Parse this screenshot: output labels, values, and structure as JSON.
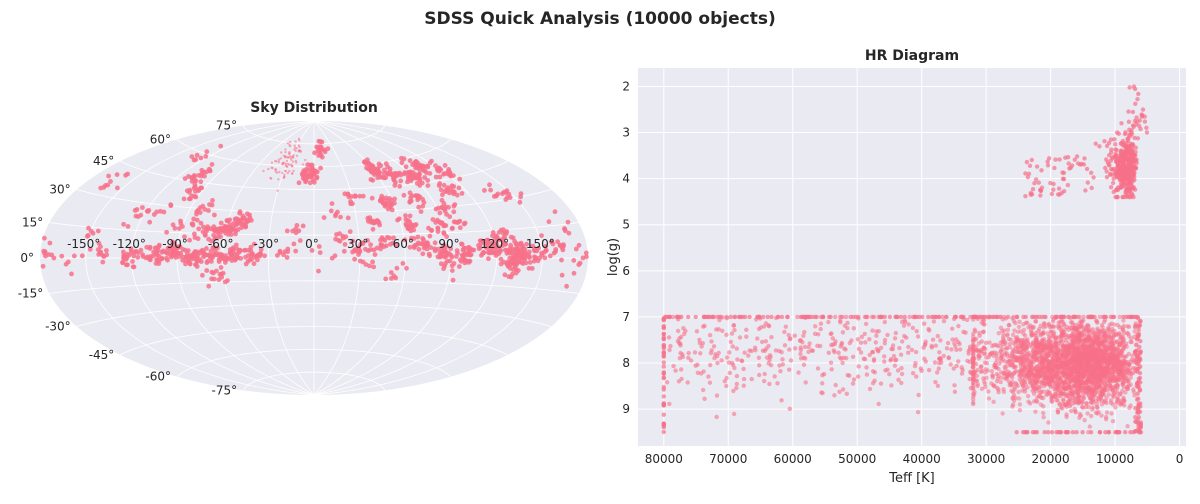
{
  "figure": {
    "suptitle": "SDSS Quick Analysis (10000 objects)"
  },
  "colors": {
    "points": "#f77189",
    "panel_bg": "#eaeaf2",
    "grid": "#ffffff",
    "text": "#262626"
  },
  "chart_data": [
    {
      "type": "scatter",
      "projection": "aitoff",
      "title": "Sky Distribution",
      "grid": true,
      "lon_tick_labels": [
        "-150°",
        "-120°",
        "-90°",
        "-60°",
        "-30°",
        "0°",
        "30°",
        "60°",
        "90°",
        "120°",
        "150°"
      ],
      "lat_tick_labels": [
        "-75°",
        "-60°",
        "-45°",
        "-30°",
        "-15°",
        "0°",
        "15°",
        "30°",
        "45°",
        "60°",
        "75°"
      ],
      "lon_ticks": [
        -150,
        -120,
        -90,
        -60,
        -30,
        0,
        30,
        60,
        90,
        120,
        150
      ],
      "lat_ticks": [
        -75,
        -60,
        -45,
        -30,
        -15,
        0,
        15,
        30,
        45,
        60,
        75
      ],
      "clusters": [
        {
          "lon": -165,
          "lat": 37,
          "n": 10
        },
        {
          "lon": -150,
          "lat": 12,
          "n": 6
        },
        {
          "lon": -140,
          "lat": 3,
          "n": 12
        },
        {
          "lon": -120,
          "lat": 0,
          "n": 25
        },
        {
          "lon": -105,
          "lat": 2,
          "n": 30
        },
        {
          "lon": -92,
          "lat": 4,
          "n": 40
        },
        {
          "lon": -80,
          "lat": 0,
          "n": 35
        },
        {
          "lon": -68,
          "lat": 2,
          "n": 30
        },
        {
          "lon": -55,
          "lat": 1,
          "n": 40
        },
        {
          "lon": -42,
          "lat": 2,
          "n": 30
        },
        {
          "lon": -60,
          "lat": 18,
          "n": 45
        },
        {
          "lon": -50,
          "lat": 24,
          "n": 30
        },
        {
          "lon": -72,
          "lat": 16,
          "n": 20
        },
        {
          "lon": -65,
          "lat": -12,
          "n": 14
        },
        {
          "lon": -105,
          "lat": 48,
          "n": 25
        },
        {
          "lon": -95,
          "lat": 38,
          "n": 15
        },
        {
          "lon": -82,
          "lat": 30,
          "n": 12
        },
        {
          "lon": -110,
          "lat": 27,
          "n": 10
        },
        {
          "lon": -125,
          "lat": 22,
          "n": 8
        },
        {
          "lon": -90,
          "lat": 17,
          "n": 15
        },
        {
          "lon": -30,
          "lat": 63,
          "n": 90
        },
        {
          "lon": -5,
          "lat": 55,
          "n": 45
        },
        {
          "lon": 10,
          "lat": 72,
          "n": 20
        },
        {
          "lon": 20,
          "lat": 14,
          "n": 10
        },
        {
          "lon": -10,
          "lat": 18,
          "n": 8
        },
        {
          "lon": 5,
          "lat": 3,
          "n": 6
        },
        {
          "lon": 30,
          "lat": 7,
          "n": 14
        },
        {
          "lon": 35,
          "lat": 0,
          "n": 12
        },
        {
          "lon": 45,
          "lat": 8,
          "n": 18
        },
        {
          "lon": 40,
          "lat": 22,
          "n": 16
        },
        {
          "lon": 55,
          "lat": 35,
          "n": 25
        },
        {
          "lon": 60,
          "lat": 56,
          "n": 40
        },
        {
          "lon": 75,
          "lat": 52,
          "n": 30
        },
        {
          "lon": 90,
          "lat": 48,
          "n": 35
        },
        {
          "lon": 105,
          "lat": 55,
          "n": 30
        },
        {
          "lon": 120,
          "lat": 50,
          "n": 25
        },
        {
          "lon": 110,
          "lat": 40,
          "n": 20
        },
        {
          "lon": 95,
          "lat": 30,
          "n": 15
        },
        {
          "lon": 80,
          "lat": 35,
          "n": 18
        },
        {
          "lon": 65,
          "lat": 22,
          "n": 22
        },
        {
          "lon": 85,
          "lat": 18,
          "n": 20
        },
        {
          "lon": 100,
          "lat": 20,
          "n": 12
        },
        {
          "lon": 70,
          "lat": 8,
          "n": 25
        },
        {
          "lon": 85,
          "lat": 3,
          "n": 30
        },
        {
          "lon": 100,
          "lat": 2,
          "n": 30
        },
        {
          "lon": 115,
          "lat": 5,
          "n": 35
        },
        {
          "lon": 125,
          "lat": 10,
          "n": 30
        },
        {
          "lon": 135,
          "lat": 4,
          "n": 50
        },
        {
          "lon": 130,
          "lat": -3,
          "n": 35
        },
        {
          "lon": 145,
          "lat": 1,
          "n": 30
        },
        {
          "lon": 160,
          "lat": 6,
          "n": 15
        },
        {
          "lon": 170,
          "lat": 14,
          "n": 8
        },
        {
          "lon": 150,
          "lat": 30,
          "n": 10
        },
        {
          "lon": 140,
          "lat": 36,
          "n": 8
        },
        {
          "lon": 90,
          "lat": -5,
          "n": 10
        },
        {
          "lon": 55,
          "lat": -6,
          "n": 8
        },
        {
          "lon": -175,
          "lat": 2,
          "n": 10
        },
        {
          "lon": -160,
          "lat": -3,
          "n": 6
        },
        {
          "lon": 175,
          "lat": 0,
          "n": 6
        },
        {
          "lon": -130,
          "lat": 58,
          "n": 8
        },
        {
          "lon": 30,
          "lat": 40,
          "n": 12
        },
        {
          "lon": 15,
          "lat": 30,
          "n": 8
        },
        {
          "lon": -20,
          "lat": 5,
          "n": 10
        },
        {
          "lon": 170,
          "lat": -8,
          "n": 5
        }
      ]
    },
    {
      "type": "scatter",
      "title": "HR Diagram",
      "xlabel": "Teff [K]",
      "ylabel": "log(g)",
      "xlim": [
        84000,
        -1000
      ],
      "ylim": [
        9.8,
        1.6
      ],
      "x_inverted": true,
      "y_inverted": true,
      "grid": true,
      "xticks": [
        80000,
        70000,
        60000,
        50000,
        40000,
        30000,
        20000,
        10000,
        0
      ],
      "xtick_labels": [
        "80000",
        "70000",
        "60000",
        "50000",
        "40000",
        "30000",
        "20000",
        "10000",
        "0"
      ],
      "yticks": [
        2,
        3,
        4,
        5,
        6,
        7,
        8,
        9
      ],
      "ytick_labels": [
        "2",
        "3",
        "4",
        "5",
        "6",
        "7",
        "8",
        "9"
      ],
      "populations": [
        {
          "name": "",
          "teff_range": [
            5500,
            13000
          ],
          "logg_range": [
            2.8,
            4.4
          ],
          "n": 380,
          "note_free": true
        },
        {
          "name": "",
          "teff_range": [
            13000,
            25000
          ],
          "logg_range": [
            3.4,
            4.4
          ],
          "n": 60
        },
        {
          "name": "",
          "teff_range": [
            6000,
            8000
          ],
          "logg_range": [
            2.0,
            3.2
          ],
          "n": 30
        },
        {
          "name": "",
          "teff_range": [
            5500,
            30000
          ],
          "logg_range": [
            7.0,
            9.5
          ],
          "n": 2600
        },
        {
          "name": "",
          "teff_range": [
            30000,
            80000
          ],
          "logg_range": [
            7.0,
            9.2
          ],
          "n": 450
        }
      ],
      "edge_values": {
        "logg_min": 7.0,
        "logg_max": 9.5,
        "teff_max": 80000,
        "teff_min_edge": 6000
      }
    }
  ]
}
